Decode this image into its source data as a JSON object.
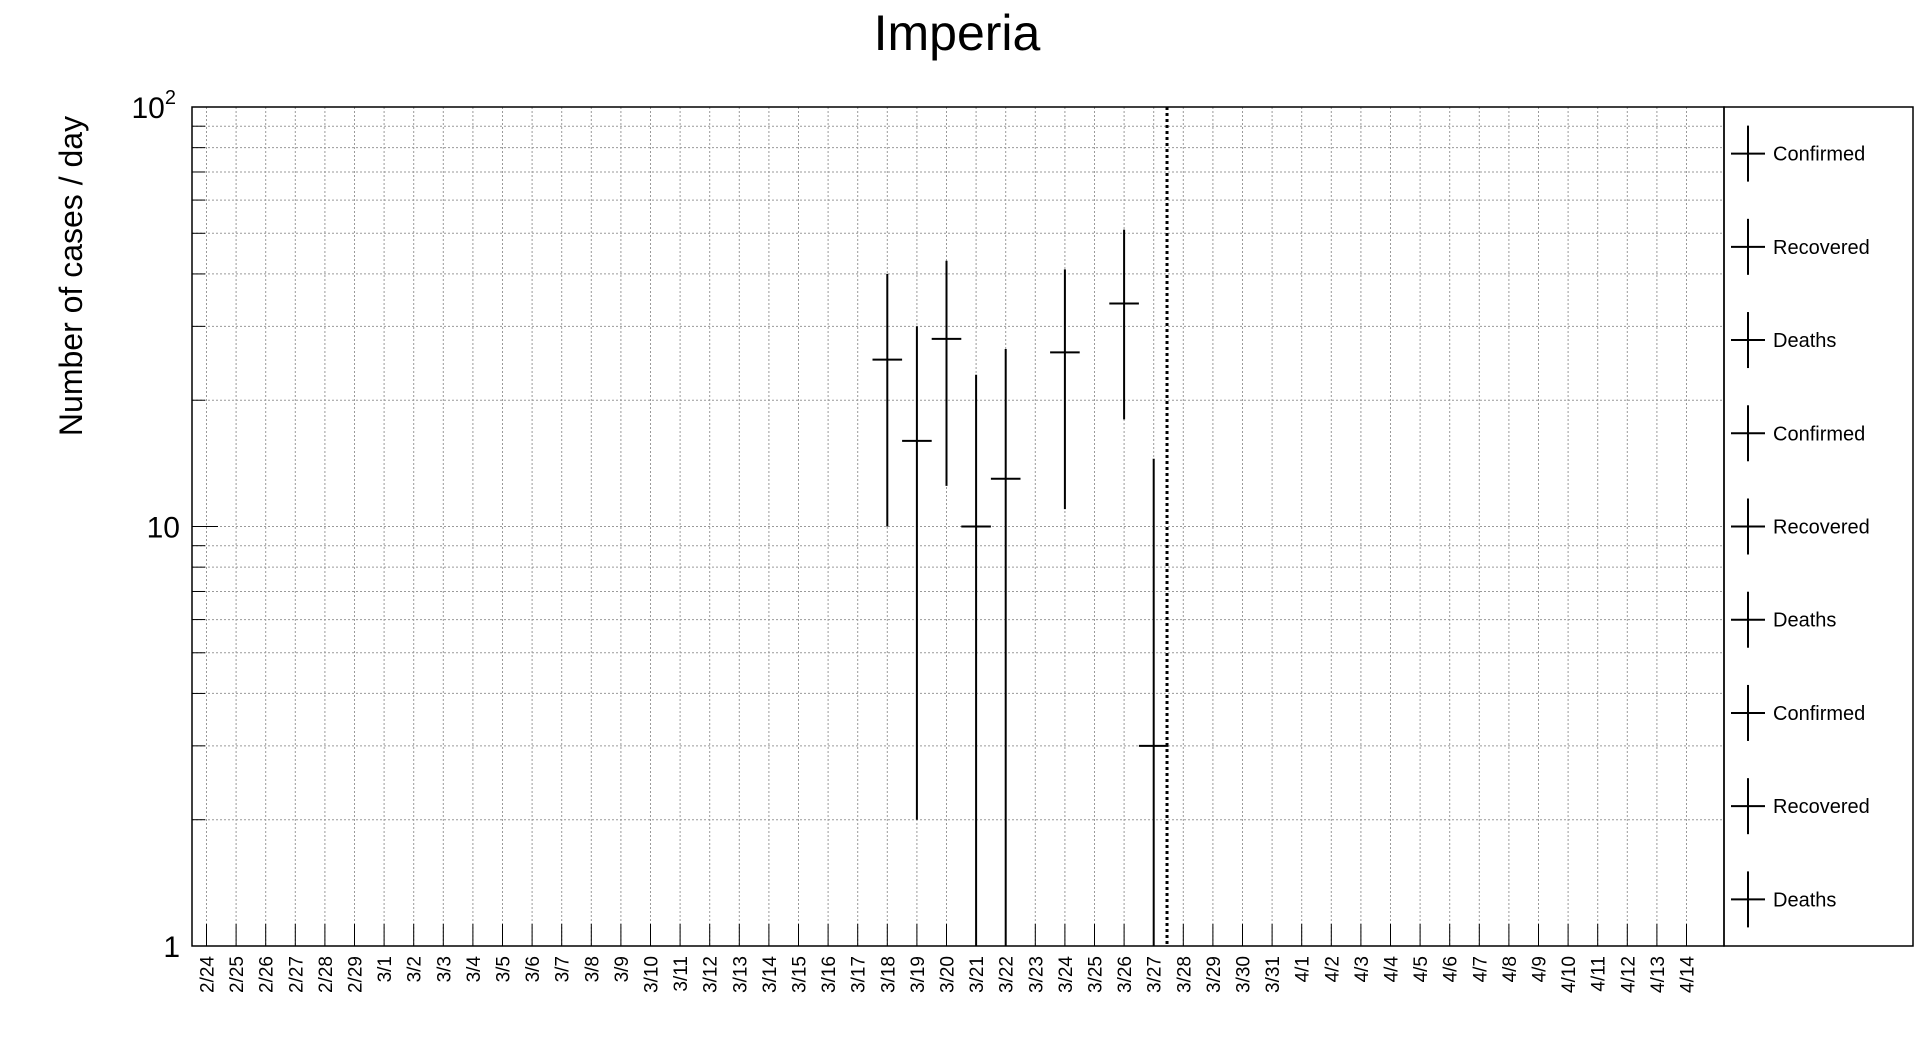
{
  "chart_data": {
    "type": "scatter",
    "title": "Imperia",
    "xlabel": "",
    "ylabel": "Number of cases / day",
    "y_scale": "log",
    "ylim": [
      1,
      100
    ],
    "y_tick_labels": [
      {
        "value": 1,
        "base": "1",
        "exp": ""
      },
      {
        "value": 10,
        "base": "10",
        "exp": ""
      },
      {
        "value": 100,
        "base": "10",
        "exp": "2"
      }
    ],
    "categories": [
      "2/24",
      "2/25",
      "2/26",
      "2/27",
      "2/28",
      "2/29",
      "3/1",
      "3/2",
      "3/3",
      "3/4",
      "3/5",
      "3/6",
      "3/7",
      "3/8",
      "3/9",
      "3/10",
      "3/11",
      "3/12",
      "3/13",
      "3/14",
      "3/15",
      "3/16",
      "3/17",
      "3/18",
      "3/19",
      "3/20",
      "3/21",
      "3/22",
      "3/23",
      "3/24",
      "3/25",
      "3/26",
      "3/27",
      "3/28",
      "3/29",
      "3/30",
      "3/31",
      "4/1",
      "4/2",
      "4/3",
      "4/4",
      "4/5",
      "4/6",
      "4/7",
      "4/8",
      "4/9",
      "4/10",
      "4/11",
      "4/12",
      "4/13",
      "4/14"
    ],
    "grid": true,
    "vertical_marker": "3/27",
    "legend_position": "right",
    "legend": [
      "Confirmed",
      "Recovered",
      "Deaths",
      "Confirmed",
      "Recovered",
      "Deaths",
      "Confirmed",
      "Recovered",
      "Deaths"
    ],
    "series": [
      {
        "name": "Confirmed",
        "points": [
          {
            "x": "3/18",
            "y": 25,
            "y_low": 10,
            "y_high": 40
          },
          {
            "x": "3/19",
            "y": 16,
            "y_low": 2,
            "y_high": 30
          },
          {
            "x": "3/20",
            "y": 28,
            "y_low": 12.5,
            "y_high": 43
          },
          {
            "x": "3/21",
            "y": 10,
            "y_low": 1,
            "y_high": 23
          },
          {
            "x": "3/22",
            "y": 13,
            "y_low": 1,
            "y_high": 26.5
          },
          {
            "x": "3/24",
            "y": 26,
            "y_low": 11,
            "y_high": 41
          },
          {
            "x": "3/26",
            "y": 34,
            "y_low": 18,
            "y_high": 51
          },
          {
            "x": "3/27",
            "y": 3,
            "y_low": 1,
            "y_high": 14.5
          }
        ]
      }
    ]
  }
}
